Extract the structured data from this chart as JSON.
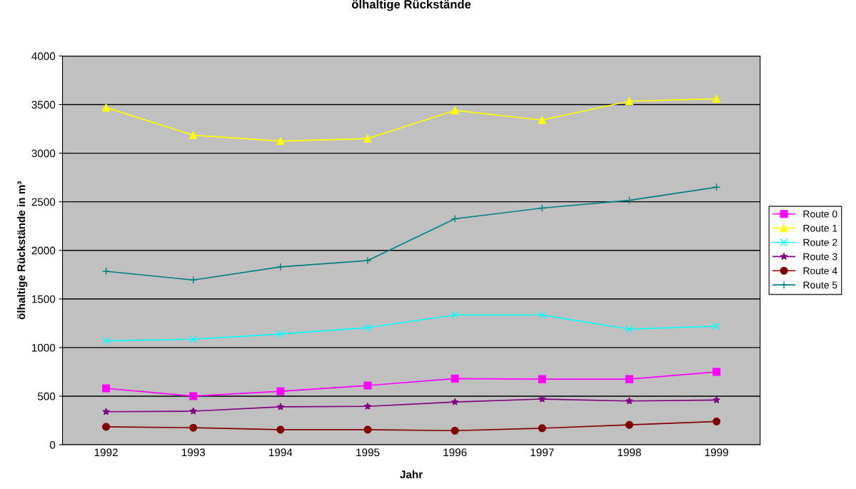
{
  "chart_data": {
    "type": "line",
    "title": "ölhaltige Rückstände",
    "xlabel": "Jahr",
    "ylabel": "ölhaltige Rückstände in m³",
    "categories": [
      "1992",
      "1993",
      "1994",
      "1995",
      "1996",
      "1997",
      "1998",
      "1999"
    ],
    "series": [
      {
        "name": "Route 0",
        "color": "#ff00ff",
        "marker": "square",
        "values": [
          580,
          500,
          550,
          610,
          680,
          675,
          675,
          750
        ]
      },
      {
        "name": "Route 1",
        "color": "#ffff00",
        "marker": "triangle",
        "values": [
          3470,
          3185,
          3125,
          3150,
          3440,
          3340,
          3535,
          3560
        ]
      },
      {
        "name": "Route 2",
        "color": "#00ffff",
        "marker": "cross",
        "values": [
          1070,
          1085,
          1140,
          1205,
          1335,
          1335,
          1190,
          1220
        ]
      },
      {
        "name": "Route 3",
        "color": "#800080",
        "marker": "star",
        "values": [
          340,
          345,
          390,
          395,
          440,
          470,
          450,
          460
        ]
      },
      {
        "name": "Route 4",
        "color": "#800000",
        "marker": "circle",
        "values": [
          185,
          175,
          155,
          155,
          145,
          170,
          205,
          240
        ]
      },
      {
        "name": "Route 5",
        "color": "#008080",
        "marker": "plus",
        "values": [
          1785,
          1695,
          1830,
          1895,
          2325,
          2435,
          2515,
          2650
        ]
      }
    ],
    "ylim": [
      0,
      4000
    ],
    "yticks": [
      0,
      500,
      1000,
      1500,
      2000,
      2500,
      3000,
      3500,
      4000
    ],
    "grid": "y",
    "legend": "right",
    "line_style": "solid"
  }
}
